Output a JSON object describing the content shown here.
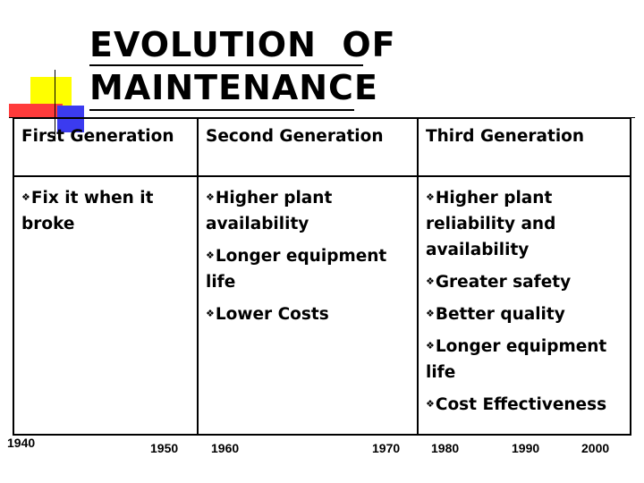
{
  "slide": {
    "title_line1": "Evolution  of",
    "title_line2": "Maintenance"
  },
  "table": {
    "headers": [
      "First Generation",
      "Second Generation",
      "Third Generation"
    ],
    "columns": [
      [
        "Fix it  when it broke"
      ],
      [
        "Higher plant availability",
        "Longer equipment life",
        "Lower Costs"
      ],
      [
        "Higher plant reliability and availability",
        "Greater safety",
        "Better quality",
        "Longer equipment life",
        "Cost Effectiveness"
      ]
    ]
  },
  "timeline": [
    "1940",
    "1950",
    "1960",
    "1970",
    "1980",
    "1990",
    "2000"
  ],
  "bullet_icon": "four-diamond-bullet-icon",
  "colors": {
    "yellow": "#ffff00",
    "blue": "#3b3bf0",
    "red": "#ff3b3b"
  }
}
